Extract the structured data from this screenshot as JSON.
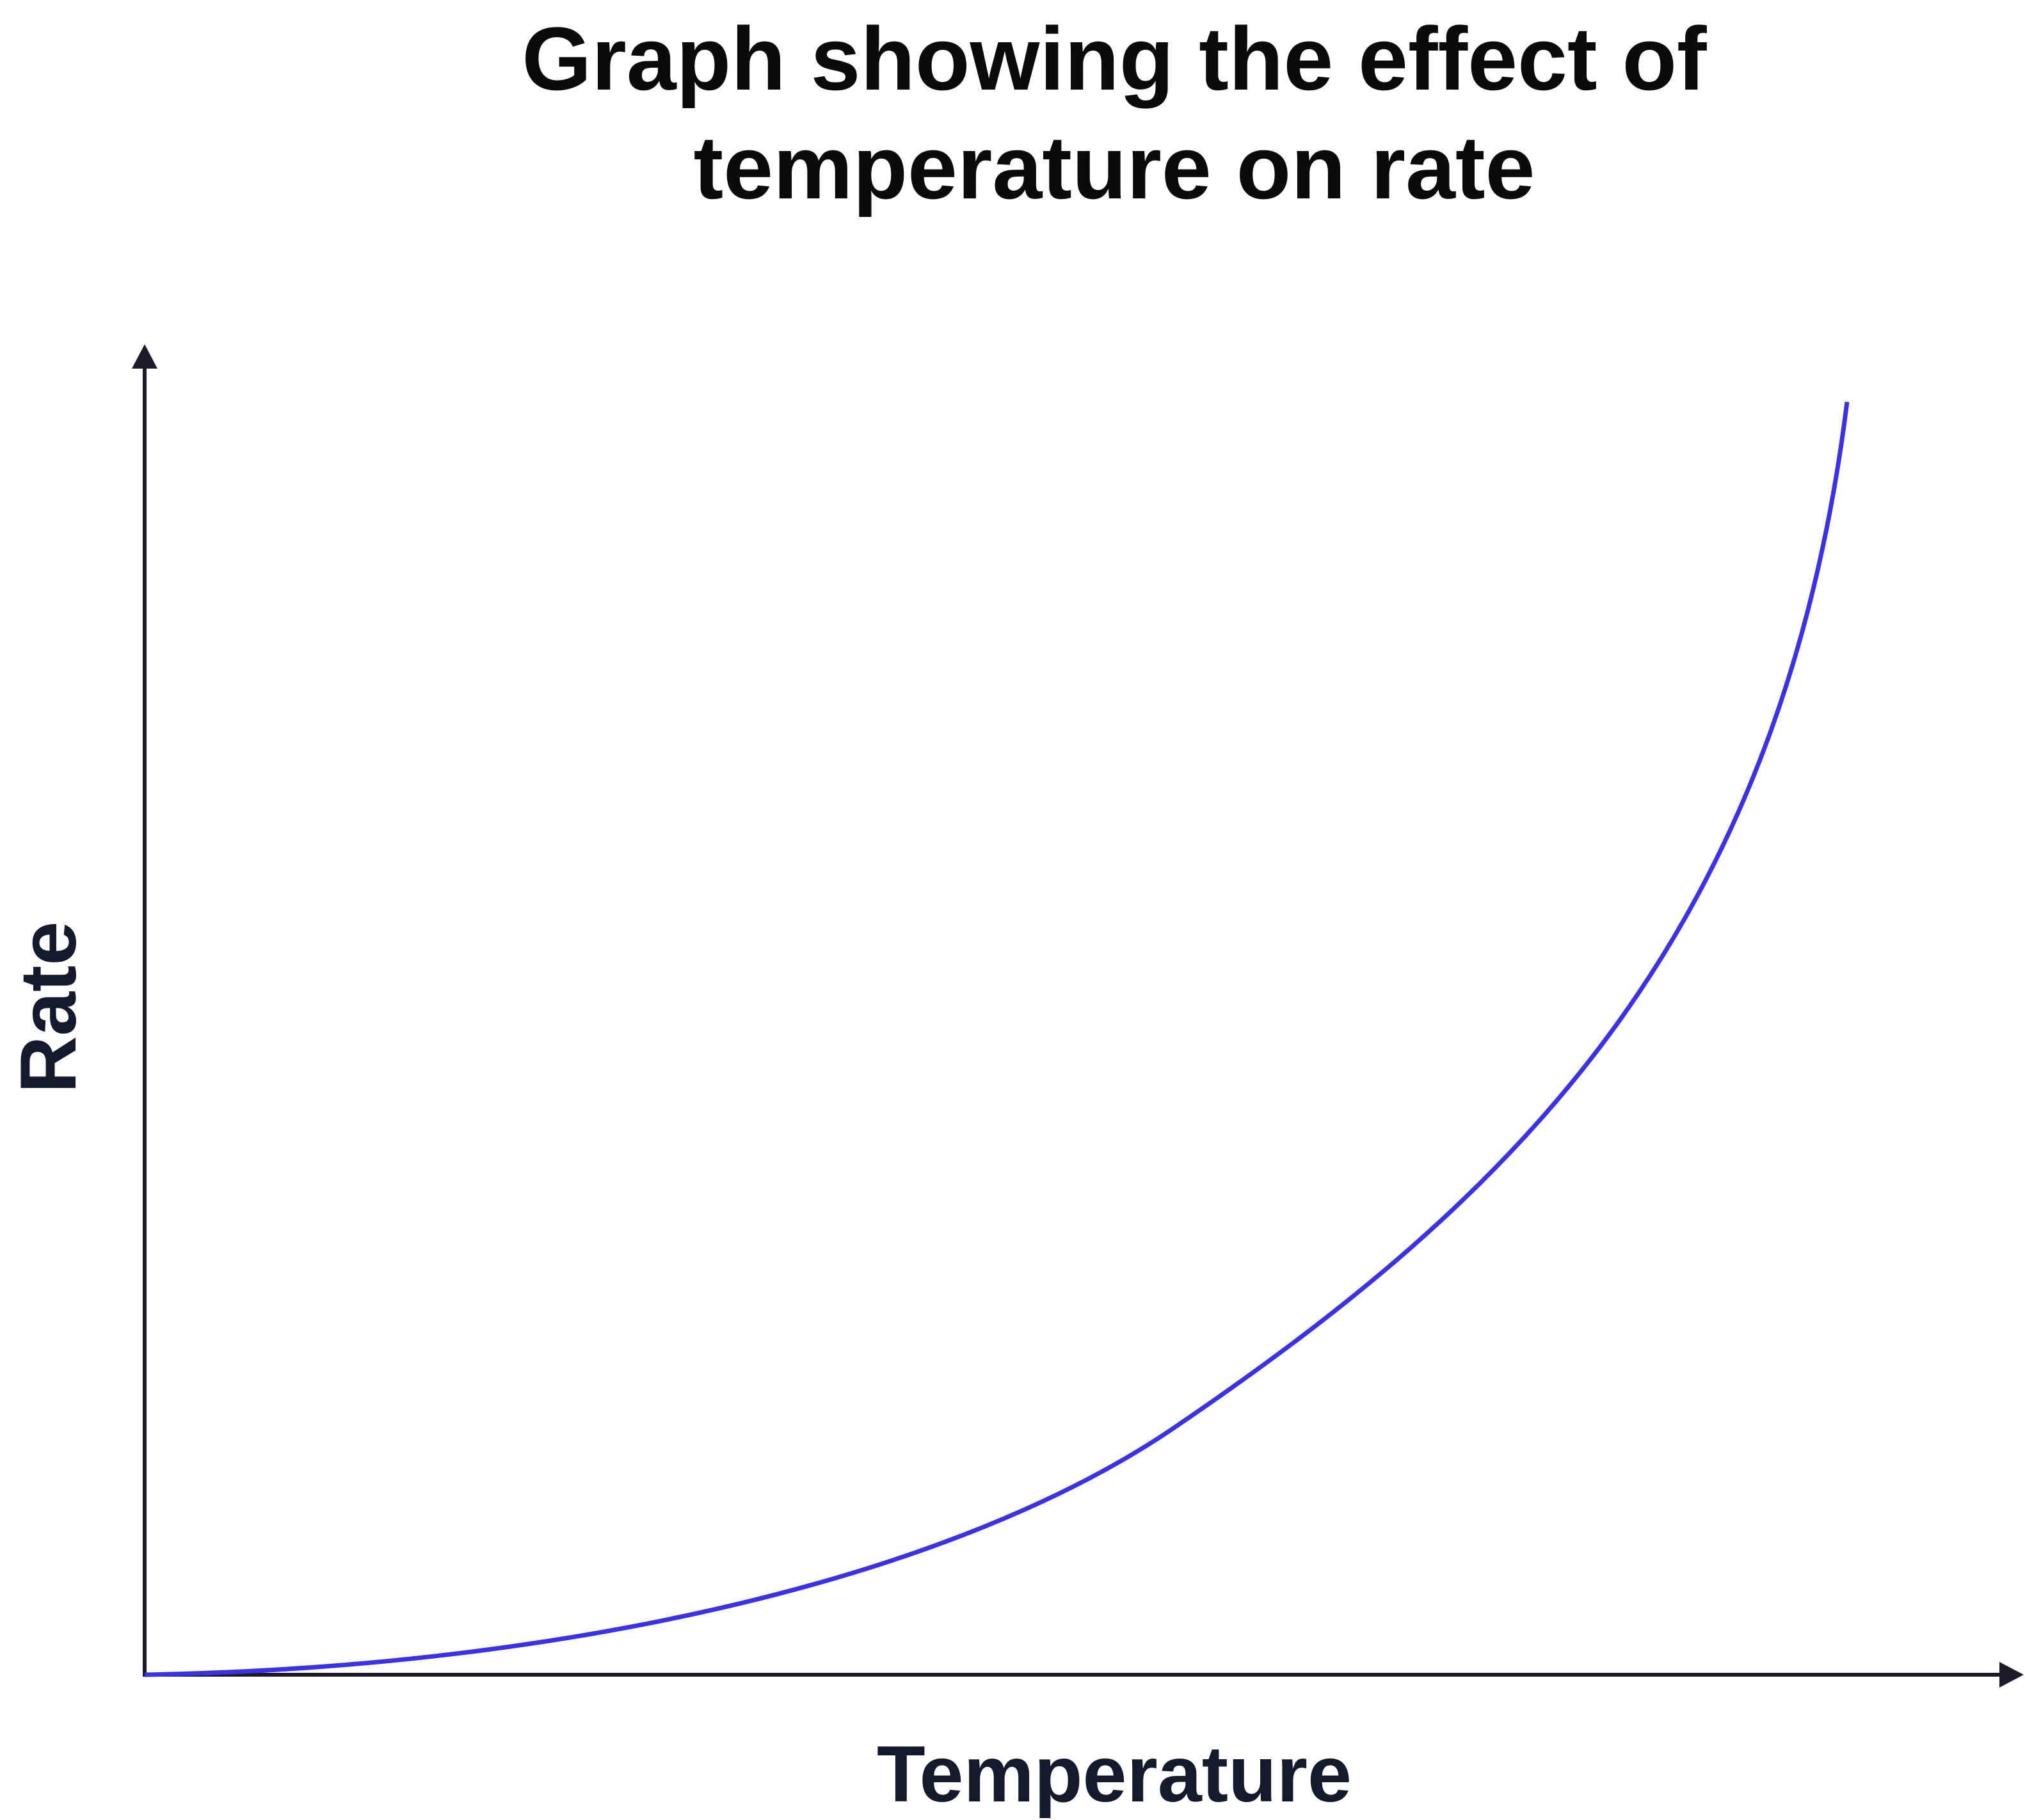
{
  "title_lines": [
    "Graph showing the effect of",
    "temperature on rate"
  ],
  "x_axis_label": "Temperature",
  "y_axis_label": "Rate"
}
